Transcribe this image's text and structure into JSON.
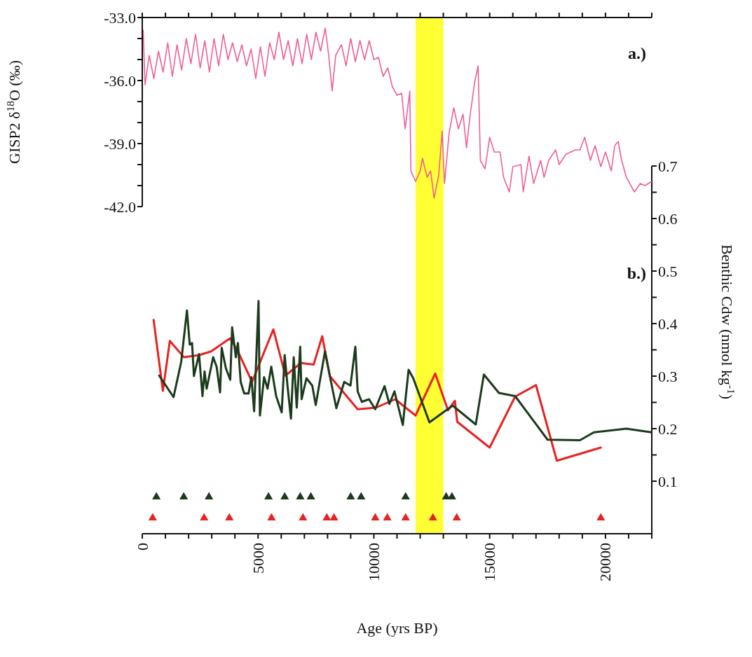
{
  "chart_data": [
    {
      "type": "line",
      "ylabel": "GISP2 δ$^{18}$O (‰)",
      "annotations": [
        "a.)"
      ],
      "tick_labels": "y",
      "xlim": [
        0,
        22000
      ],
      "xticks": [
        0,
        {
          "value": 1000,
          "label": null
        },
        {
          "value": 2000,
          "label": null
        },
        {
          "value": 3000,
          "label": null
        },
        {
          "value": 4000,
          "label": null
        },
        5000,
        {
          "value": 6000,
          "label": null
        },
        {
          "value": 7000,
          "label": null
        },
        {
          "value": 8000,
          "label": null
        },
        {
          "value": 9000,
          "label": null
        },
        10000,
        {
          "value": 11000,
          "label": null
        },
        {
          "value": 12000,
          "label": null
        },
        {
          "value": 13000,
          "label": null
        },
        {
          "value": 14000,
          "label": null
        },
        15000,
        {
          "value": 16000,
          "label": null
        },
        {
          "value": 17000,
          "label": null
        },
        {
          "value": 18000,
          "label": null
        },
        {
          "value": 19000,
          "label": null
        },
        20000,
        {
          "value": 21000,
          "label": null
        },
        {
          "value": 22000,
          "label": null
        }
      ],
      "ylim": [
        -42,
        -33
      ],
      "yticks": [
        {
          "value": -33,
          "label": "-33.0"
        },
        {
          "value": -34,
          "label": null
        },
        {
          "value": -35,
          "label": null
        },
        {
          "value": -36,
          "label": "-36.0"
        },
        {
          "value": -37,
          "label": null
        },
        {
          "value": -38,
          "label": null
        },
        {
          "value": -39,
          "label": "-39.0"
        },
        {
          "value": -40,
          "label": null
        },
        {
          "value": -41,
          "label": null
        },
        {
          "value": -42,
          "label": "-42.0"
        }
      ],
      "bands": [
        {
          "axis": "x",
          "from": 11800,
          "to": 13000,
          "color": "#ffff33"
        }
      ],
      "series": [
        {
          "color": "#ef5f95",
          "x": [
            40,
            120,
            300,
            500,
            700,
            900,
            1100,
            1300,
            1500,
            1700,
            1900,
            2100,
            2300,
            2500,
            2700,
            2900,
            3100,
            3300,
            3500,
            3700,
            3900,
            4100,
            4300,
            4500,
            4700,
            4900,
            5100,
            5300,
            5500,
            5700,
            5900,
            6100,
            6300,
            6500,
            6700,
            6900,
            7100,
            7300,
            7500,
            7700,
            7900,
            8050,
            8200,
            8350,
            8600,
            8800,
            9000,
            9200,
            9400,
            9600,
            9800,
            10000,
            10200,
            10400,
            10600,
            10800,
            11000,
            11200,
            11350,
            11550,
            11600,
            11800,
            12000,
            12100,
            12300,
            12450,
            12600,
            12800,
            12950,
            13050,
            13250,
            13450,
            13650,
            13850,
            14000,
            14150,
            14350,
            14500,
            14600,
            14800,
            15000,
            15200,
            15450,
            15600,
            15850,
            16000,
            16350,
            16450,
            16700,
            16900,
            17200,
            17350,
            17550,
            17850,
            18000,
            18300,
            18700,
            18900,
            19100,
            19350,
            19550,
            19800,
            20000,
            20250,
            20400,
            20550,
            20700,
            20900,
            21250,
            21500,
            21700,
            22000
          ],
          "values": [
            -33.6,
            -36.2,
            -34.8,
            -35.9,
            -34.6,
            -35.6,
            -34.2,
            -35.8,
            -34.3,
            -35.5,
            -34.0,
            -35.2,
            -33.8,
            -35.4,
            -34.1,
            -35.6,
            -34.0,
            -35.3,
            -33.8,
            -35.0,
            -34.2,
            -35.1,
            -34.3,
            -35.3,
            -34.5,
            -35.9,
            -34.4,
            -35.8,
            -34.2,
            -35.0,
            -33.7,
            -35.0,
            -34.1,
            -35.3,
            -34.0,
            -35.2,
            -33.8,
            -35.0,
            -33.7,
            -34.6,
            -33.5,
            -34.8,
            -36.5,
            -34.8,
            -34.3,
            -35.3,
            -34.0,
            -35.1,
            -34.1,
            -35.0,
            -34.1,
            -35.0,
            -34.9,
            -35.8,
            -35.4,
            -36.3,
            -36.7,
            -36.6,
            -38.3,
            -36.5,
            -40.3,
            -40.8,
            -40.3,
            -39.7,
            -40.6,
            -40.3,
            -41.6,
            -40.5,
            -38.4,
            -40.9,
            -38.5,
            -37.3,
            -38.3,
            -37.6,
            -39.2,
            -37.7,
            -36.1,
            -35.3,
            -39.8,
            -40.2,
            -38.7,
            -39.4,
            -39.4,
            -40.6,
            -41.3,
            -40.1,
            -40.0,
            -41.3,
            -39.6,
            -40.9,
            -39.8,
            -40.6,
            -39.8,
            -39.3,
            -40.0,
            -39.5,
            -39.3,
            -39.3,
            -38.7,
            -39.8,
            -39.1,
            -40.1,
            -39.4,
            -40.3,
            -39.1,
            -38.9,
            -39.8,
            -40.6,
            -41.3,
            -40.9,
            -41.0,
            -40.8
          ]
        }
      ]
    },
    {
      "type": "line",
      "xlabel": "Age (yrs BP)",
      "y2label": "Benthic Cdw (nmol kg$^{-1}$)",
      "annotations": [
        "b.)"
      ],
      "xlim": [
        0,
        22000
      ],
      "xticks": [
        0,
        {
          "value": 1000,
          "label": null
        },
        {
          "value": 2000,
          "label": null
        },
        {
          "value": 3000,
          "label": null
        },
        {
          "value": 4000,
          "label": null
        },
        5000,
        {
          "value": 6000,
          "label": null
        },
        {
          "value": 7000,
          "label": null
        },
        {
          "value": 8000,
          "label": null
        },
        {
          "value": 9000,
          "label": null
        },
        10000,
        {
          "value": 11000,
          "label": null
        },
        {
          "value": 12000,
          "label": null
        },
        {
          "value": 13000,
          "label": null
        },
        {
          "value": 14000,
          "label": null
        },
        15000,
        {
          "value": 16000,
          "label": null
        },
        {
          "value": 17000,
          "label": null
        },
        {
          "value": 18000,
          "label": null
        },
        {
          "value": 19000,
          "label": null
        },
        20000,
        {
          "value": 21000,
          "label": null
        },
        {
          "value": 22000,
          "label": null
        }
      ],
      "y2lim": [
        0,
        0.7
      ],
      "y2ticks": [
        0.1,
        {
          "value": 0.15,
          "label": null
        },
        0.2,
        {
          "value": 0.25,
          "label": null
        },
        0.3,
        {
          "value": 0.35,
          "label": null
        },
        0.4,
        {
          "value": 0.45,
          "label": null
        },
        0.5,
        {
          "value": 0.55,
          "label": null
        },
        0.6,
        {
          "value": 0.65,
          "label": null
        },
        0.7
      ],
      "bands": [
        {
          "axis": "x",
          "from": 11800,
          "to": 13000,
          "color": "#ffff33"
        }
      ],
      "series": [
        {
          "color": "#e82222",
          "axis": "y2",
          "x": [
            490,
            890,
            1190,
            1800,
            2450,
            2970,
            3790,
            4100,
            4740,
            5660,
            6180,
            6850,
            7400,
            7770,
            8100,
            9300,
            10090,
            10920,
            11800,
            12650,
            13200,
            13500,
            13600,
            15000,
            16100,
            17000,
            17900,
            19800
          ],
          "values": [
            0.407,
            0.272,
            0.367,
            0.336,
            0.34,
            0.347,
            0.372,
            0.35,
            0.289,
            0.389,
            0.301,
            0.325,
            0.322,
            0.376,
            0.3,
            0.237,
            0.24,
            0.256,
            0.225,
            0.305,
            0.235,
            0.253,
            0.213,
            0.164,
            0.261,
            0.283,
            0.139,
            0.164
          ]
        },
        {
          "color": "#1c3a1c",
          "axis": "y2",
          "x": [
            730,
            1350,
            1680,
            1930,
            2050,
            2150,
            2230,
            2450,
            2600,
            2690,
            2780,
            3060,
            3210,
            3360,
            3430,
            3610,
            3800,
            3880,
            4040,
            4130,
            4250,
            4400,
            4590,
            4710,
            4830,
            5020,
            5080,
            5260,
            5410,
            5570,
            5780,
            6020,
            6150,
            6270,
            6420,
            6540,
            6670,
            6820,
            6880,
            7090,
            7340,
            7490,
            7890,
            8100,
            8380,
            8720,
            8990,
            9200,
            9300,
            9480,
            9790,
            10060,
            10460,
            10670,
            10890,
            11250,
            11500,
            11700,
            12400,
            13400,
            14400,
            14750,
            15400,
            16100,
            17500,
            18900,
            19500,
            20900,
            22000
          ],
          "values": [
            0.301,
            0.26,
            0.327,
            0.425,
            0.36,
            0.363,
            0.3,
            0.342,
            0.262,
            0.309,
            0.276,
            0.336,
            0.318,
            0.269,
            0.354,
            0.315,
            0.293,
            0.393,
            0.336,
            0.363,
            0.289,
            0.267,
            0.267,
            0.298,
            0.233,
            0.443,
            0.225,
            0.298,
            0.276,
            0.318,
            0.262,
            0.231,
            0.34,
            0.282,
            0.219,
            0.336,
            0.24,
            0.356,
            0.256,
            0.296,
            0.282,
            0.245,
            0.347,
            0.3,
            0.239,
            0.289,
            0.282,
            0.356,
            0.271,
            0.251,
            0.256,
            0.237,
            0.281,
            0.247,
            0.271,
            0.207,
            0.312,
            0.296,
            0.212,
            0.244,
            0.208,
            0.303,
            0.268,
            0.262,
            0.179,
            0.178,
            0.193,
            0.2,
            0.193
          ]
        },
        {
          "type": "scatter",
          "marker": "triangle",
          "color": "#1c3a1c",
          "axis": "y2",
          "x": [
            610,
            1790,
            2880,
            5450,
            6150,
            6820,
            7280,
            9000,
            9450,
            11370,
            13120,
            13370
          ],
          "values": [
            0.07,
            0.07,
            0.07,
            0.07,
            0.07,
            0.07,
            0.07,
            0.07,
            0.07,
            0.07,
            0.07,
            0.07
          ]
        },
        {
          "type": "scatter",
          "marker": "triangle",
          "color": "#e82222",
          "axis": "y2",
          "x": [
            450,
            2670,
            3760,
            5580,
            6940,
            7970,
            8280,
            10060,
            10580,
            11370,
            12550,
            13580,
            19800
          ],
          "values": [
            0.03,
            0.03,
            0.03,
            0.03,
            0.03,
            0.03,
            0.03,
            0.03,
            0.03,
            0.03,
            0.03,
            0.03,
            0.03
          ]
        }
      ]
    }
  ]
}
